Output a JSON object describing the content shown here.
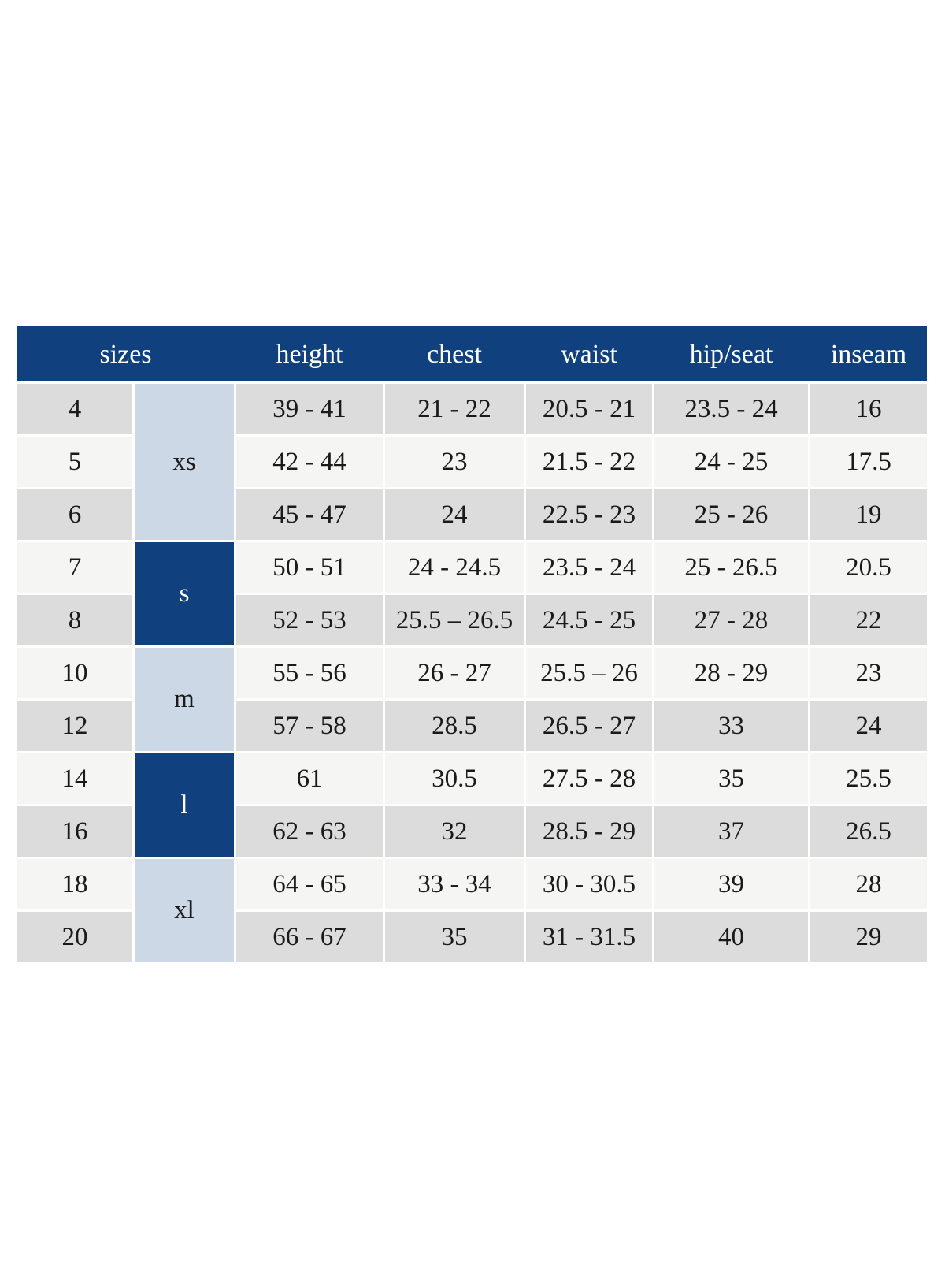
{
  "colors": {
    "header_bg": "#10407e",
    "header_text": "#ffffff",
    "row_gray": "#dcdcdc",
    "row_light": "#f5f5f4",
    "group_light_blue": "#ccd8e6",
    "group_dark_navy": "#10407e",
    "cell_text": "#1a1a1a",
    "page_bg": "#ffffff"
  },
  "chart_data": {
    "type": "table",
    "title": "",
    "columns": [
      "sizes",
      "height",
      "chest",
      "waist",
      "hip/seat",
      "inseam"
    ],
    "groups": [
      {
        "label": "xs",
        "span": 3,
        "style": "light"
      },
      {
        "label": "s",
        "span": 2,
        "style": "dark"
      },
      {
        "label": "m",
        "span": 2,
        "style": "light"
      },
      {
        "label": "l",
        "span": 2,
        "style": "dark"
      },
      {
        "label": "xl",
        "span": 2,
        "style": "light"
      }
    ],
    "rows": [
      {
        "size": "4",
        "group": "xs",
        "height": "39 - 41",
        "chest": "21 - 22",
        "waist": "20.5 - 21",
        "hip_seat": "23.5 - 24",
        "inseam": "16"
      },
      {
        "size": "5",
        "group": "xs",
        "height": "42 - 44",
        "chest": "23",
        "waist": "21.5 - 22",
        "hip_seat": "24 - 25",
        "inseam": "17.5"
      },
      {
        "size": "6",
        "group": "xs",
        "height": "45 - 47",
        "chest": "24",
        "waist": "22.5 - 23",
        "hip_seat": "25 - 26",
        "inseam": "19"
      },
      {
        "size": "7",
        "group": "s",
        "height": "50 - 51",
        "chest": "24 - 24.5",
        "waist": "23.5 - 24",
        "hip_seat": "25 - 26.5",
        "inseam": "20.5"
      },
      {
        "size": "8",
        "group": "s",
        "height": "52 - 53",
        "chest": "25.5 – 26.5",
        "waist": "24.5 - 25",
        "hip_seat": "27 - 28",
        "inseam": "22"
      },
      {
        "size": "10",
        "group": "m",
        "height": "55 - 56",
        "chest": "26 - 27",
        "waist": "25.5 – 26",
        "hip_seat": "28 - 29",
        "inseam": "23"
      },
      {
        "size": "12",
        "group": "m",
        "height": "57 - 58",
        "chest": "28.5",
        "waist": "26.5 - 27",
        "hip_seat": "33",
        "inseam": "24"
      },
      {
        "size": "14",
        "group": "l",
        "height": "61",
        "chest": "30.5",
        "waist": "27.5 - 28",
        "hip_seat": "35",
        "inseam": "25.5"
      },
      {
        "size": "16",
        "group": "l",
        "height": "62 - 63",
        "chest": "32",
        "waist": "28.5 - 29",
        "hip_seat": "37",
        "inseam": "26.5"
      },
      {
        "size": "18",
        "group": "xl",
        "height": "64 - 65",
        "chest": "33 - 34",
        "waist": "30 - 30.5",
        "hip_seat": "39",
        "inseam": "28"
      },
      {
        "size": "20",
        "group": "xl",
        "height": "66 - 67",
        "chest": "35",
        "waist": "31 - 31.5",
        "hip_seat": "40",
        "inseam": "29"
      }
    ]
  }
}
